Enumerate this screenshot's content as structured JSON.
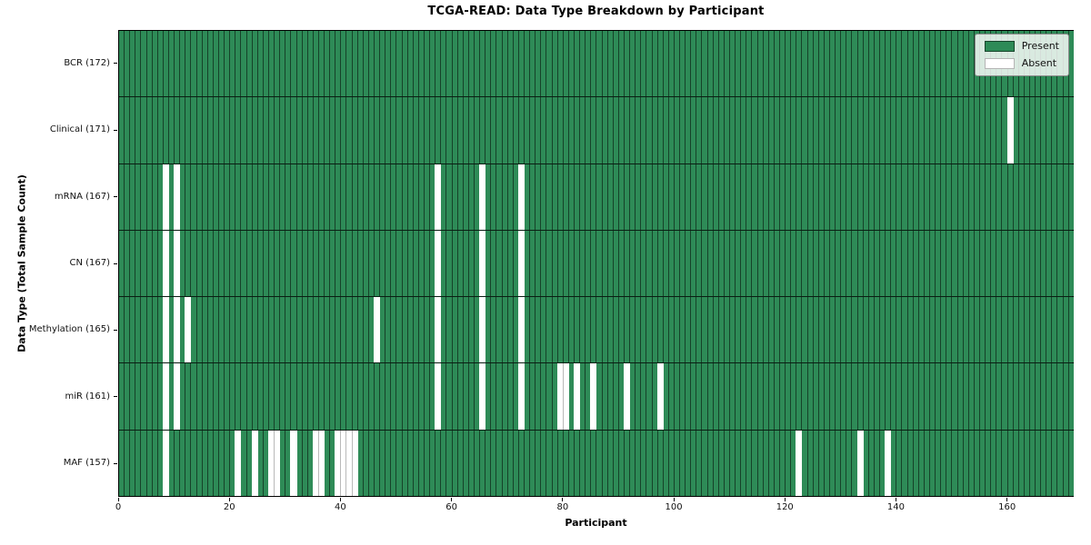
{
  "title": "TCGA-READ: Data Type Breakdown by Participant",
  "colors": {
    "present": "#2e8b57",
    "absent": "#ffffff",
    "cell_border": "rgba(0,0,0,0.52)",
    "row_border": "rgba(0,0,0,0.78)",
    "frame": "#000000"
  },
  "legend": {
    "present_label": "Present",
    "absent_label": "Absent",
    "position": "upper right"
  },
  "chart_data": {
    "type": "heatmap",
    "title": "TCGA-READ: Data Type Breakdown by Participant",
    "xlabel": "Participant",
    "ylabel": "Data Type (Total Sample Count)",
    "legend": [
      "Present",
      "Absent"
    ],
    "n_participants": 172,
    "x_range": [
      0,
      172
    ],
    "x_ticks": [
      0,
      20,
      40,
      60,
      80,
      100,
      120,
      140,
      160
    ],
    "grid": "cell-borders",
    "legend_position": "upper-right",
    "rows": [
      {
        "name": "bcr",
        "label": "BCR (172)",
        "data_type": "BCR",
        "total_sample_count": 172,
        "absent_participants": []
      },
      {
        "name": "clinical",
        "label": "Clinical (171)",
        "data_type": "Clinical",
        "total_sample_count": 171,
        "absent_participants": [
          160
        ]
      },
      {
        "name": "mrna",
        "label": "mRNA (167)",
        "data_type": "mRNA",
        "total_sample_count": 167,
        "absent_participants": [
          8,
          10,
          57,
          65,
          72
        ]
      },
      {
        "name": "cn",
        "label": "CN (167)",
        "data_type": "CN",
        "total_sample_count": 167,
        "absent_participants": [
          8,
          10,
          57,
          65,
          72
        ]
      },
      {
        "name": "methylation",
        "label": "Methylation (165)",
        "data_type": "Methylation",
        "total_sample_count": 165,
        "absent_participants": [
          8,
          10,
          12,
          46,
          57,
          65,
          72
        ]
      },
      {
        "name": "mir",
        "label": "miR (161)",
        "data_type": "miR",
        "total_sample_count": 161,
        "absent_participants": [
          8,
          10,
          57,
          65,
          72,
          79,
          80,
          82,
          85,
          91,
          97
        ]
      },
      {
        "name": "maf",
        "label": "MAF (157)",
        "data_type": "MAF",
        "total_sample_count": 157,
        "absent_participants": [
          8,
          21,
          24,
          27,
          28,
          31,
          35,
          36,
          39,
          40,
          41,
          42,
          122,
          133,
          138
        ]
      }
    ]
  }
}
